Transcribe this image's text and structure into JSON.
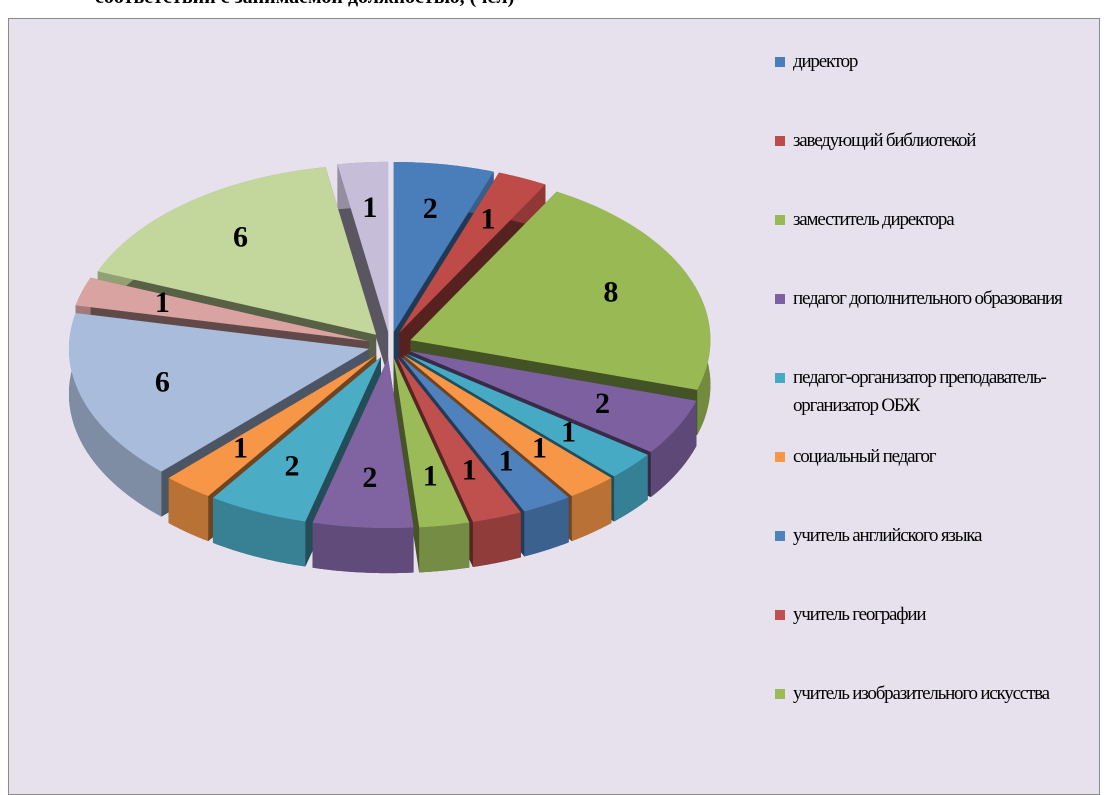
{
  "chart_data": {
    "type": "pie3d",
    "title": "соответствии с занимаемой должностью, (чел)",
    "categories": [
      "директор",
      "заведующий библиотекой",
      "заместитель директора",
      "педагог дополнительного образования",
      "педагог-организатор преподаватель-организатор ОБЖ",
      "социальный педагог",
      "учитель английского языка",
      "учитель географии",
      "учитель изобразительного искусства",
      null,
      null,
      null,
      null,
      null,
      null,
      null
    ],
    "values": [
      2,
      1,
      8,
      2,
      1,
      1,
      1,
      1,
      1,
      2,
      2,
      1,
      6,
      1,
      6,
      1
    ],
    "colors": [
      "#4a7ebb",
      "#be4b48",
      "#98b954",
      "#7d60a0",
      "#46aac5",
      "#f79646",
      "#4f81bd",
      "#c0504d",
      "#9bbb59",
      "#8064a2",
      "#4bacc6",
      "#f79646",
      "#a9bcdb",
      "#d9a3a2",
      "#c3d69b",
      "#c6bdd8"
    ],
    "legend": "right"
  }
}
